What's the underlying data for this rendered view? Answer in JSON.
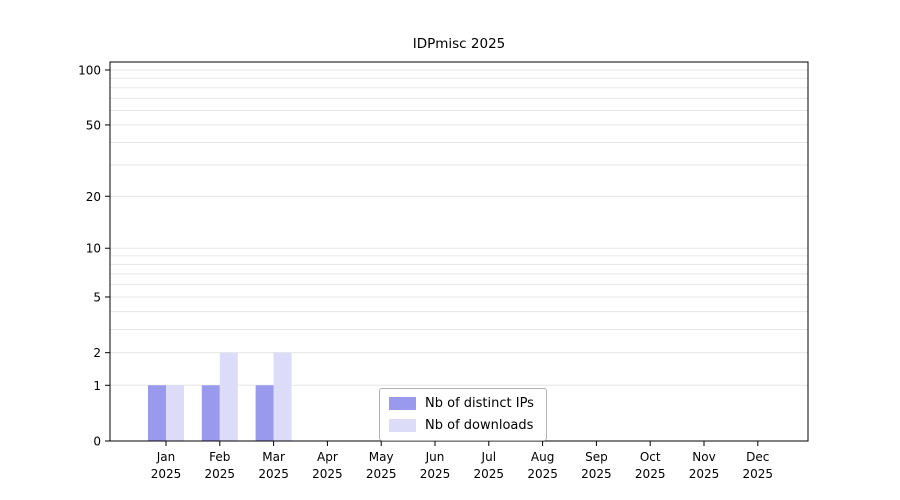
{
  "chart_data": {
    "type": "bar",
    "title": "IDPmisc 2025",
    "categories": [
      "Jan",
      "Feb",
      "Mar",
      "Apr",
      "May",
      "Jun",
      "Jul",
      "Aug",
      "Sep",
      "Oct",
      "Nov",
      "Dec"
    ],
    "category_year": "2025",
    "series": [
      {
        "name": "Nb of distinct IPs",
        "color": "#9999ee",
        "values": [
          1,
          1,
          1,
          0,
          0,
          0,
          0,
          0,
          0,
          0,
          0,
          0
        ]
      },
      {
        "name": "Nb of downloads",
        "color": "#dcdcf8",
        "values": [
          1,
          2,
          2,
          0,
          0,
          0,
          0,
          0,
          0,
          0,
          0,
          0
        ]
      }
    ],
    "y_ticks": [
      0,
      1,
      2,
      5,
      10,
      20,
      50,
      100
    ],
    "y_scale": "log1p",
    "ylim": [
      0,
      100
    ],
    "grid": "horizontal-minor",
    "legend_position": "lower-center",
    "colors": {
      "gridline": "#e6e6e6",
      "axis": "#000000",
      "background": "#ffffff"
    }
  }
}
